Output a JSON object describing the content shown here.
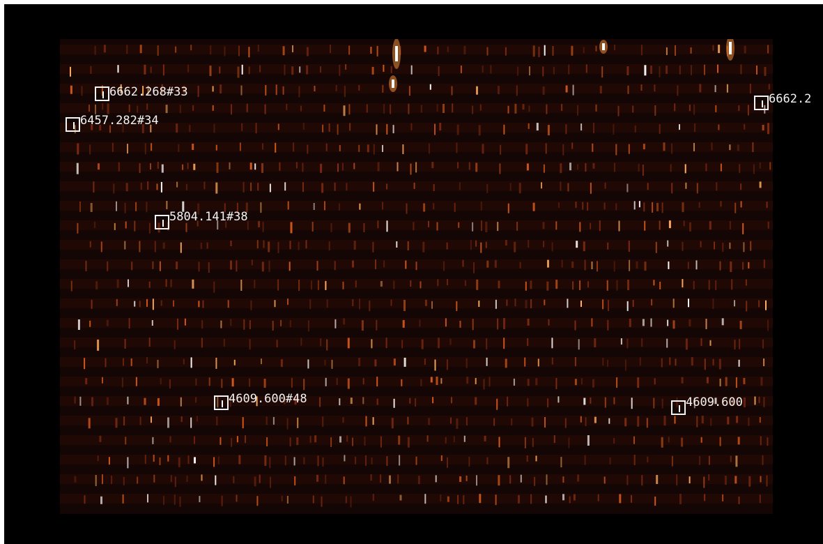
{
  "image": {
    "description_type": "astronomical echelle spectrum frame",
    "colormap": "heat",
    "colors": {
      "frame": "#000000",
      "background": "#140604",
      "line_dim": "#7a2a10",
      "line_mid": "#d45a1c",
      "line_bright": "#ffb060",
      "line_peak": "#ffffff",
      "annotation": "#f4f4f4"
    }
  },
  "annotations": [
    {
      "label": "6662.268#33"
    },
    {
      "label": "6457.282#34"
    },
    {
      "label": "5804.141#38"
    },
    {
      "label": "4609.600#48"
    },
    {
      "label": "6662.2"
    },
    {
      "label": "4609.600"
    }
  ]
}
